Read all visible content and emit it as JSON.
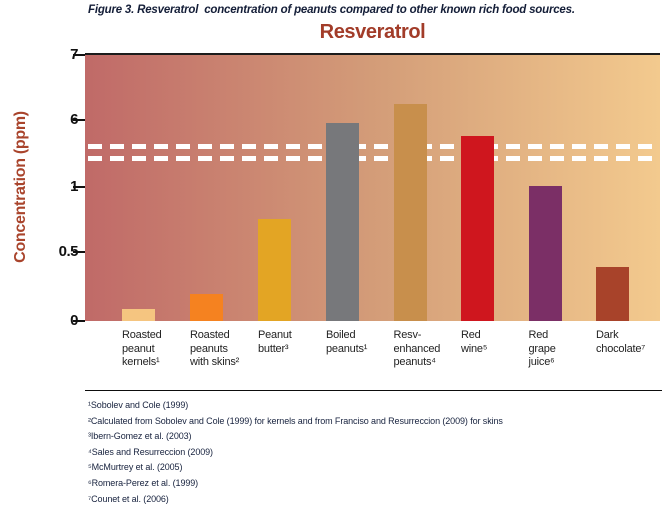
{
  "figure_caption": "Figure 3. Resveratrol  concentration of peanuts compared to other known rich food sources.",
  "chart_data": {
    "type": "bar",
    "title": "Resveratrol",
    "ylabel": "Concentration (ppm)",
    "xlabel": "",
    "y_tick_labels": [
      "7",
      "6",
      "1",
      "0.5",
      "0"
    ],
    "y_tick_values": [
      7,
      6,
      1,
      0.5,
      0
    ],
    "axis_break_between": [
      1,
      6
    ],
    "grid": false,
    "legend": false,
    "categories": [
      "Roasted\npeanut\nkernels¹",
      "Roasted\npeanuts\nwith skins²",
      "Peanut\nbutter³",
      "Boiled\npeanuts¹",
      "Resv-\nenhanced\npeanuts⁴",
      "Red\nwine⁵",
      "Red\ngrape\njuice⁶",
      "Dark\nchocolate⁷"
    ],
    "values": [
      0.09,
      0.2,
      0.76,
      5.95,
      6.25,
      5.75,
      1.01,
      0.4
    ],
    "bar_colors": [
      "#F5C580",
      "#F58220",
      "#E3A524",
      "#77787B",
      "#C88F4C",
      "#CF161E",
      "#7B2F66",
      "#A8432A"
    ],
    "plot_gradient": [
      "#C06A68",
      "#D49E79",
      "#F3CA8E"
    ],
    "break_marker_color": "#FFFFFF"
  },
  "colors": {
    "chart_title": "#A23C29",
    "ylabel": "#A9442C",
    "caption": "#141E38",
    "footnote": "#17223E",
    "category_label": "#232323"
  },
  "footnotes": [
    "¹Sobolev and Cole (1999)",
    "²Calculated from Sobolev and Cole (1999) for kernels and from Franciso and Resurreccion (2009) for skins",
    "³Ibern-Gomez et al. (2003)",
    "⁴Sales and Resurreccion (2009)",
    "⁵McMurtrey et al. (2005)",
    "⁶Romera-Perez et al. (1999)",
    "⁷Counet et al. (2006)"
  ]
}
